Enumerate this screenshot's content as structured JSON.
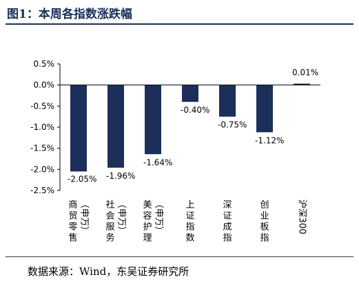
{
  "header": {
    "title": "图1：本周各指数涨跌幅"
  },
  "footer": {
    "source": "数据来源：Wind，东吴证券研究所"
  },
  "chart_data": {
    "type": "bar",
    "title": "",
    "categories": [
      "商贸零售（申万）",
      "社会服务（申万）",
      "美容护理（申万）",
      "上证指数",
      "深证成指",
      "创业板指",
      "沪深300"
    ],
    "category_columns": [
      [
        "商贸零售",
        "（申万）"
      ],
      [
        "社会服务",
        "（申万）"
      ],
      [
        "美容护理",
        "（申万）"
      ],
      [
        "上证指数"
      ],
      [
        "深证成指"
      ],
      [
        "创业板指"
      ],
      [
        "沪深300"
      ]
    ],
    "values": [
      -2.05,
      -1.96,
      -1.64,
      -0.4,
      -0.75,
      -1.12,
      0.01
    ],
    "data_labels": [
      "-2.05%",
      "-1.96%",
      "-1.64%",
      "-0.40%",
      "-0.75%",
      "-1.12%",
      "0.01%"
    ],
    "ylim": [
      -2.5,
      0.5
    ],
    "yticks": [
      "0.5%",
      "0.0%",
      "-0.5%",
      "-1.0%",
      "-1.5%",
      "-2.0%",
      "-2.5%"
    ],
    "bar_color": "#1b2f5a",
    "grid": false
  }
}
